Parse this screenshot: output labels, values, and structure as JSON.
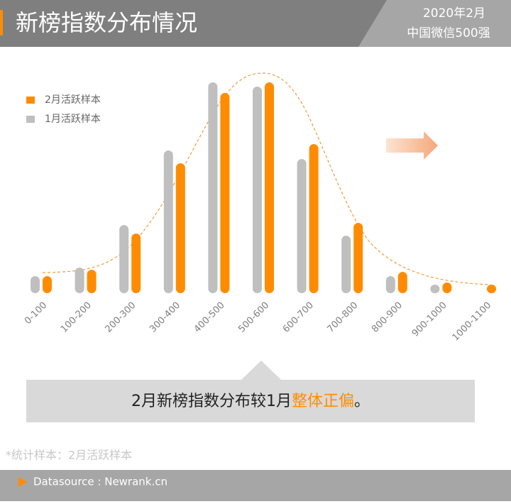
{
  "chart_data": {
    "type": "bar",
    "title": "新榜指数分布情况",
    "corner_labels": [
      "2020年2月",
      "中国微信500强"
    ],
    "categories": [
      "0-100",
      "100-200",
      "200-300",
      "300-400",
      "400-500",
      "500-600",
      "600-700",
      "700-800",
      "800-900",
      "900-1000",
      "1000-1100"
    ],
    "series": [
      {
        "name": "2月活跃样本",
        "color": "#ff8c00",
        "values": [
          8,
          11,
          28,
          61,
          94,
          99,
          70,
          33,
          10,
          5,
          4
        ]
      },
      {
        "name": "1月活跃样本",
        "color": "#bfbfbf",
        "values": [
          8,
          12,
          32,
          67,
          99,
          97,
          63,
          27,
          8,
          4,
          null
        ]
      }
    ],
    "ylim": [
      0,
      100
    ],
    "legend": "upper left",
    "annotation": {
      "text": "2月新榜指数分布较1月",
      "highlight": "整体正偏",
      "end": "。"
    },
    "footnote": "*统计样本：2月活跃样本",
    "source": "Datasource : Newrank.cn"
  }
}
